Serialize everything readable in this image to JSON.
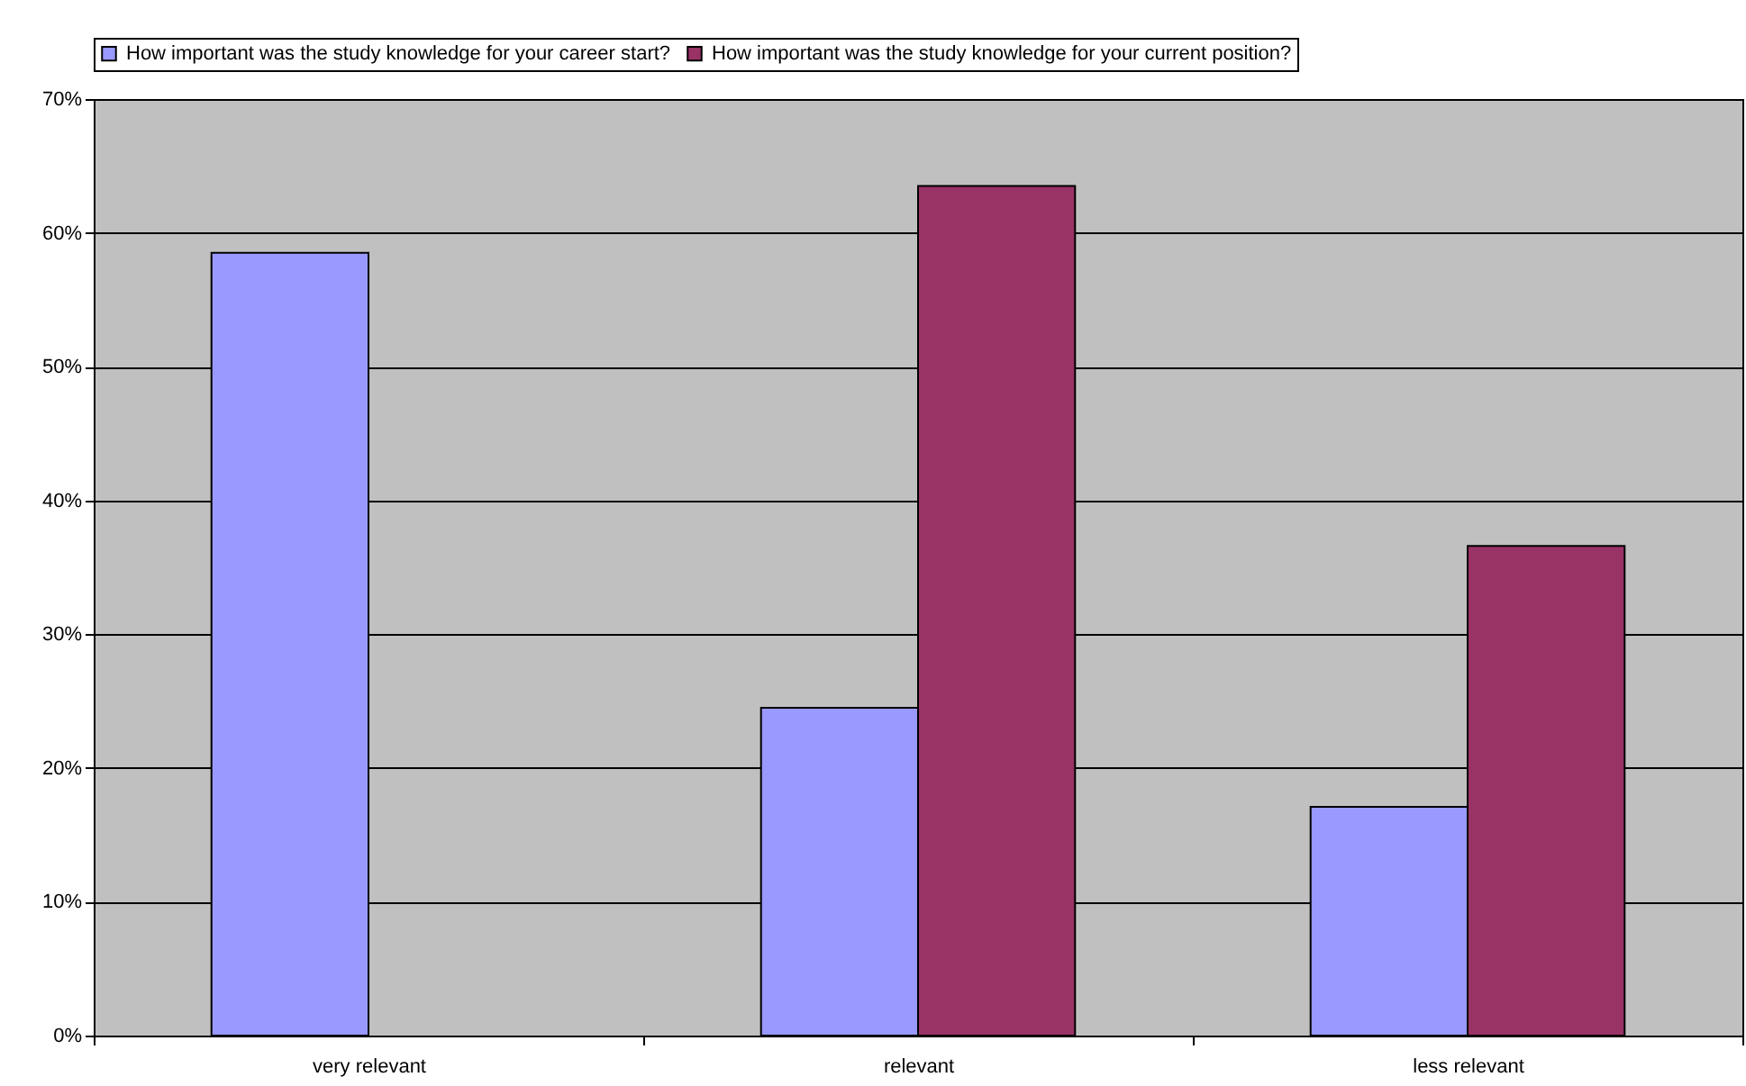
{
  "chart_data": {
    "type": "bar",
    "categories": [
      "very relevant",
      "relevant",
      "less relevant"
    ],
    "series": [
      {
        "name": "How important was the study knowledge for your career start?",
        "color": "#9999ff",
        "values": [
          58.5,
          24.5,
          17.1
        ]
      },
      {
        "name": "How important was the study knowledge for your current position?",
        "color": "#993366",
        "values": [
          null,
          63.5,
          36.6
        ]
      }
    ],
    "ylim": [
      0,
      70
    ],
    "yticks": [
      {
        "value": 0,
        "label": "0%"
      },
      {
        "value": 10,
        "label": "10%"
      },
      {
        "value": 20,
        "label": "20%"
      },
      {
        "value": 30,
        "label": "30%"
      },
      {
        "value": 40,
        "label": "40%"
      },
      {
        "value": 50,
        "label": "50%"
      },
      {
        "value": 60,
        "label": "60%"
      },
      {
        "value": 70,
        "label": "70%"
      }
    ],
    "grid": "y",
    "legend": "top"
  }
}
